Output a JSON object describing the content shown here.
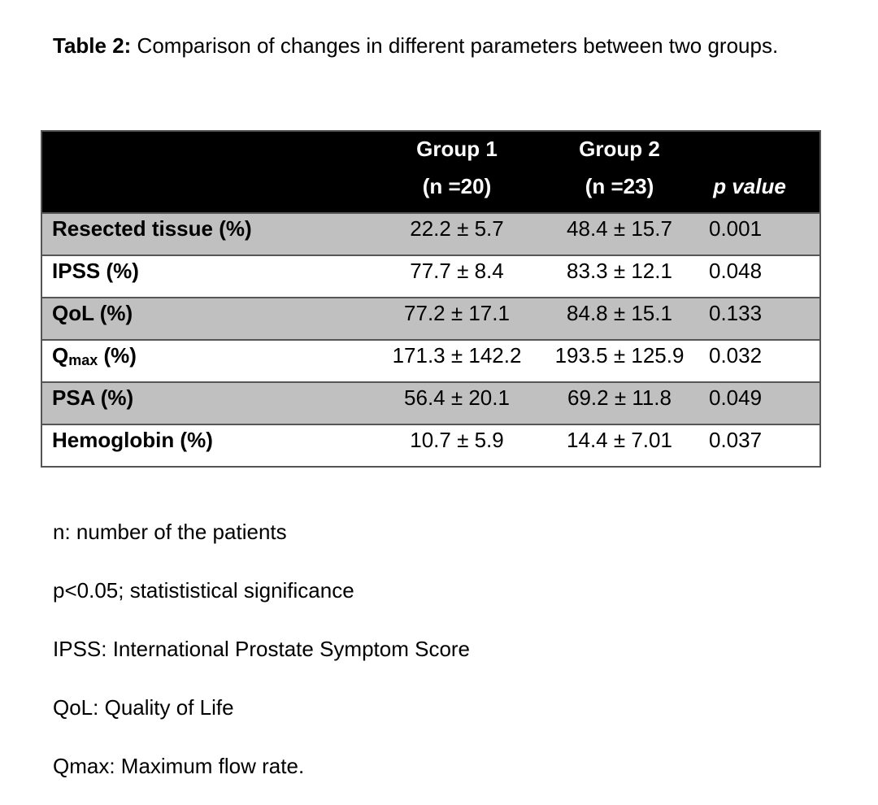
{
  "caption": {
    "label": "Table 2:",
    "text": " Comparison of changes in different parameters between two groups."
  },
  "table": {
    "header": {
      "group1_line1": "Group 1",
      "group1_line2": "(n =20)",
      "group2_line1": "Group 2",
      "group2_line2": "(n =23)",
      "p_value": "p value"
    },
    "rows": [
      {
        "label": "Resected tissue (%)",
        "g1": "22.2 ± 5.7",
        "g2": "48.4 ± 15.7",
        "p": "0.001"
      },
      {
        "label": "IPSS (%)",
        "g1": "77.7 ± 8.4",
        "g2": "83.3 ± 12.1",
        "p": "0.048"
      },
      {
        "label": "QoL (%)",
        "g1": "77.2 ± 17.1",
        "g2": "84.8 ± 15.1",
        "p": "0.133"
      },
      {
        "label_main": "Q",
        "label_sub": "max",
        "label_rest": " (%)",
        "g1": "171.3 ± 142.2",
        "g2": "193.5 ± 125.9",
        "p": "0.032"
      },
      {
        "label": "PSA (%)",
        "g1": "56.4 ± 20.1",
        "g2": "69.2 ± 11.8",
        "p": "0.049"
      },
      {
        "label": "Hemoglobin (%)",
        "g1": "10.7 ± 5.9",
        "g2": "14.4 ± 7.01",
        "p": "0.037"
      }
    ]
  },
  "notes": [
    "n: number of the patients",
    "p<0.05; statististical significance",
    "IPSS: International Prostate Symptom Score",
    "QoL: Quality of Life",
    "Qmax: Maximum flow rate."
  ],
  "colors": {
    "header_bg": "#000000",
    "shaded_row": "#c0c0c0",
    "border": "#555555"
  }
}
